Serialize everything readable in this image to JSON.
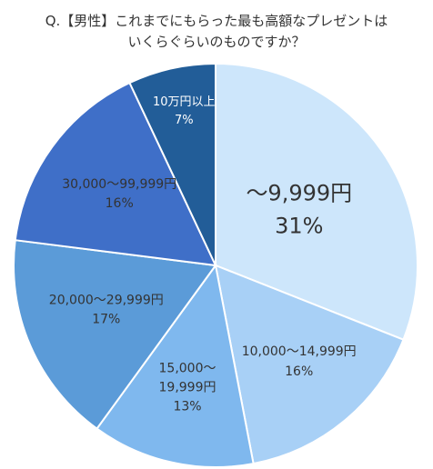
{
  "chart_data": {
    "type": "pie",
    "title_lines": [
      "Q.【男性】これまでにもらった最も高額なプレゼントは",
      "いくらぐらいのものですか？"
    ],
    "slices": [
      {
        "label_lines": [
          "～9,999円"
        ],
        "value": 31,
        "value_label": "31%",
        "color": "#cde6fb"
      },
      {
        "label_lines": [
          "10,000～14,999円"
        ],
        "value": 16,
        "value_label": "16%",
        "color": "#a8d0f6"
      },
      {
        "label_lines": [
          "15,000～",
          "19,999円"
        ],
        "value": 13,
        "value_label": "13%",
        "color": "#7fb8ee"
      },
      {
        "label_lines": [
          "20,000～29,999円"
        ],
        "value": 17,
        "value_label": "17%",
        "color": "#5b9bd8"
      },
      {
        "label_lines": [
          "30,000～99,999円"
        ],
        "value": 16,
        "value_label": "16%",
        "color": "#3f6fc8"
      },
      {
        "label_lines": [
          "10万円以上"
        ],
        "value": 7,
        "value_label": "7%",
        "color": "#225d98"
      }
    ],
    "start_angle_deg": 0,
    "direction": "clockwise",
    "legend": "none"
  }
}
